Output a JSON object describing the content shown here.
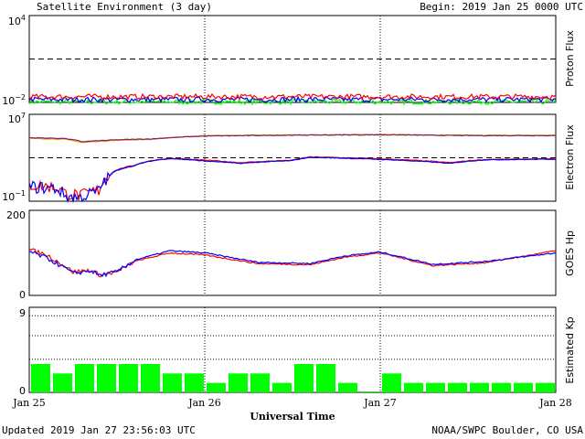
{
  "header": {
    "title": "Satellite Environment (3 day)",
    "begin": "Begin:  2019 Jan 25 0000 UTC"
  },
  "footer": {
    "updated": "Updated 2019 Jan 27 23:56:03 UTC",
    "credit": "NOAA/SWPC Boulder, CO USA"
  },
  "colors": {
    "red": "#ff0000",
    "blue": "#0000ff",
    "green": "#00ff00",
    "orange": "#ffa500",
    "purple": "#7a1f6e"
  },
  "chart_data": [
    {
      "type": "line",
      "ylabel": "Proton Flux",
      "yscale": "log",
      "yticks": [
        "10^4",
        "10^-2"
      ],
      "ylim": [
        0.01,
        10000
      ],
      "threshold": 10,
      "x_unit": "days since 2019 Jan 25 0000 UTC",
      "series": [
        {
          "color": "red",
          "level": 0.025
        },
        {
          "color": "blue",
          "level": 0.016
        },
        {
          "color": "green",
          "level": 0.011
        }
      ]
    },
    {
      "type": "line",
      "ylabel": "Electron Flux",
      "yscale": "log",
      "yticks": [
        "10^7",
        "10^-1"
      ],
      "ylim": [
        0.1,
        10000000
      ],
      "threshold": 1000,
      "series": [
        {
          "color": "orange",
          "points": [
            [
              0,
              60000
            ],
            [
              0.2,
              50000
            ],
            [
              0.3,
              25000
            ],
            [
              0.5,
              40000
            ],
            [
              0.7,
              50000
            ],
            [
              1.0,
              110000
            ],
            [
              1.5,
              130000
            ],
            [
              2.0,
              140000
            ],
            [
              2.5,
              120000
            ],
            [
              3.0,
              120000
            ]
          ]
        },
        {
          "color": "purple",
          "points": [
            [
              0,
              70000
            ],
            [
              0.2,
              60000
            ],
            [
              0.3,
              30000
            ],
            [
              0.5,
              45000
            ],
            [
              0.7,
              55000
            ],
            [
              1.0,
              100000
            ],
            [
              1.5,
              120000
            ],
            [
              2.0,
              130000
            ],
            [
              2.5,
              110000
            ],
            [
              3.0,
              110000
            ]
          ]
        },
        {
          "color": "red",
          "points": [
            [
              0,
              3
            ],
            [
              0.15,
              2
            ],
            [
              0.2,
              0.5
            ],
            [
              0.3,
              0.3
            ],
            [
              0.4,
              1
            ],
            [
              0.45,
              15
            ],
            [
              0.6,
              200
            ],
            [
              0.8,
              900
            ],
            [
              1.0,
              600
            ],
            [
              1.2,
              350
            ],
            [
              1.5,
              600
            ],
            [
              1.6,
              1200
            ],
            [
              2.0,
              800
            ],
            [
              2.4,
              350
            ],
            [
              2.6,
              700
            ],
            [
              3.0,
              800
            ]
          ]
        },
        {
          "color": "blue",
          "points": [
            [
              0,
              2
            ],
            [
              0.15,
              1.5
            ],
            [
              0.2,
              0.3
            ],
            [
              0.3,
              0.2
            ],
            [
              0.4,
              0.8
            ],
            [
              0.45,
              12
            ],
            [
              0.6,
              180
            ],
            [
              0.8,
              850
            ],
            [
              1.0,
              500
            ],
            [
              1.2,
              300
            ],
            [
              1.5,
              550
            ],
            [
              1.6,
              1100
            ],
            [
              2.0,
              700
            ],
            [
              2.4,
              300
            ],
            [
              2.6,
              650
            ],
            [
              3.0,
              750
            ]
          ]
        }
      ]
    },
    {
      "type": "line",
      "ylabel": "GOES Hp",
      "yticks": [
        "200",
        "0"
      ],
      "ylim": [
        0,
        200
      ],
      "series": [
        {
          "color": "red",
          "points": [
            [
              0,
              108
            ],
            [
              0.1,
              95
            ],
            [
              0.2,
              70
            ],
            [
              0.25,
              55
            ],
            [
              0.35,
              60
            ],
            [
              0.4,
              48
            ],
            [
              0.5,
              55
            ],
            [
              0.6,
              80
            ],
            [
              0.8,
              100
            ],
            [
              1.0,
              95
            ],
            [
              1.3,
              75
            ],
            [
              1.6,
              72
            ],
            [
              1.8,
              90
            ],
            [
              2.0,
              100
            ],
            [
              2.3,
              70
            ],
            [
              2.6,
              77
            ],
            [
              3.0,
              105
            ]
          ]
        },
        {
          "color": "blue",
          "points": [
            [
              0,
              103
            ],
            [
              0.1,
              88
            ],
            [
              0.2,
              65
            ],
            [
              0.25,
              52
            ],
            [
              0.35,
              58
            ],
            [
              0.4,
              47
            ],
            [
              0.5,
              55
            ],
            [
              0.6,
              83
            ],
            [
              0.8,
              105
            ],
            [
              1.0,
              100
            ],
            [
              1.3,
              78
            ],
            [
              1.6,
              75
            ],
            [
              1.8,
              93
            ],
            [
              2.0,
              102
            ],
            [
              2.3,
              73
            ],
            [
              2.6,
              80
            ],
            [
              3.0,
              100
            ]
          ]
        }
      ]
    },
    {
      "type": "bar",
      "ylabel": "Estimated Kp",
      "yticks": [
        "9",
        "0"
      ],
      "ylim": [
        0,
        9
      ],
      "color": "green",
      "interval_hours": 3,
      "values": [
        3,
        2,
        3,
        3,
        3,
        3,
        2,
        2,
        1,
        2,
        2,
        1,
        3,
        3,
        1,
        0.1,
        2,
        1,
        1,
        1,
        1,
        1,
        1,
        1
      ],
      "xticks": [
        "Jan 25",
        "Jan 26",
        "Jan 27",
        "Jan 28"
      ],
      "xlabel": "Universal Time"
    }
  ]
}
